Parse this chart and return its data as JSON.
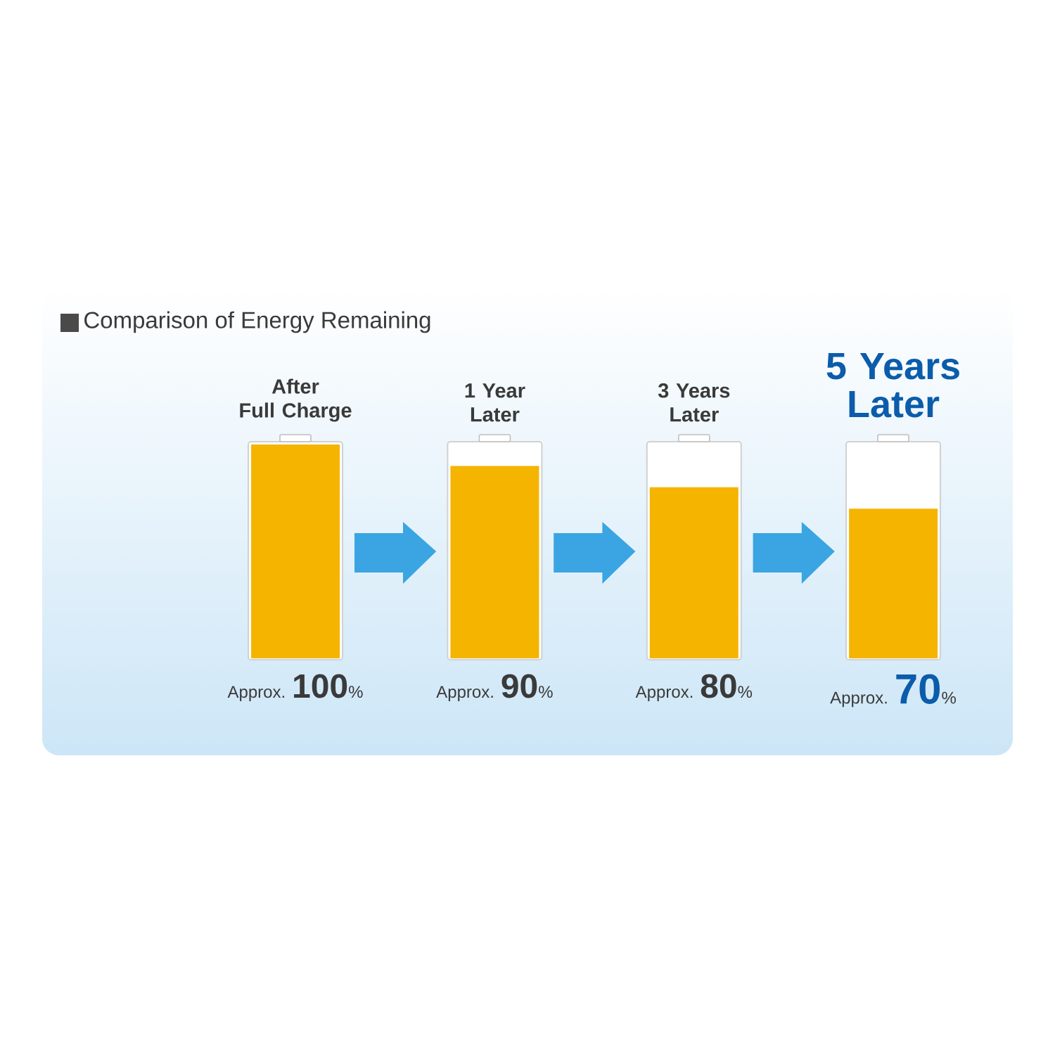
{
  "chart_data": {
    "type": "bar",
    "title": "Comparison of Energy Remaining",
    "categories": [
      "After\nFull Charge",
      "1 Year\nLater",
      "3 Years\nLater",
      "5 Years\nLater"
    ],
    "values": [
      100,
      90,
      80,
      70
    ],
    "color": "#f4b400",
    "value_labels": [
      "Approx. **100**%",
      "Approx. **90**%",
      "Approx. **80**%",
      "Approx. **70**%"
    ]
  }
}
